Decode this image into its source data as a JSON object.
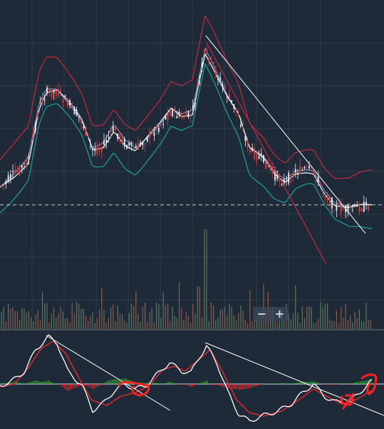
{
  "colors": {
    "background": "#1e2a38",
    "grid": "#2c3a4a",
    "candle_up": "#e8eef4",
    "candle_down": "#e03b3b",
    "bb_upper": "#c8283c",
    "bb_lower": "#1aa39a",
    "ma_white": "#ffffff",
    "ma_blue": "#8f9ad8",
    "trend_line": "#ffffff",
    "trend_red": "#c8283c",
    "dashed_level": "#c8d0b8",
    "volume_up": "#5a7a5a",
    "volume_down": "#8a5a4a",
    "macd_line": "#ffffff",
    "signal_line": "#d8262e",
    "hist_pos": "#29a329",
    "hist_neg": "#d8262e",
    "annotation": "#ff2020"
  },
  "zoom": {
    "minus_label": "−",
    "plus_label": "+"
  },
  "icons": {
    "zoom_out": "minus-icon",
    "zoom_in": "plus-icon"
  }
}
